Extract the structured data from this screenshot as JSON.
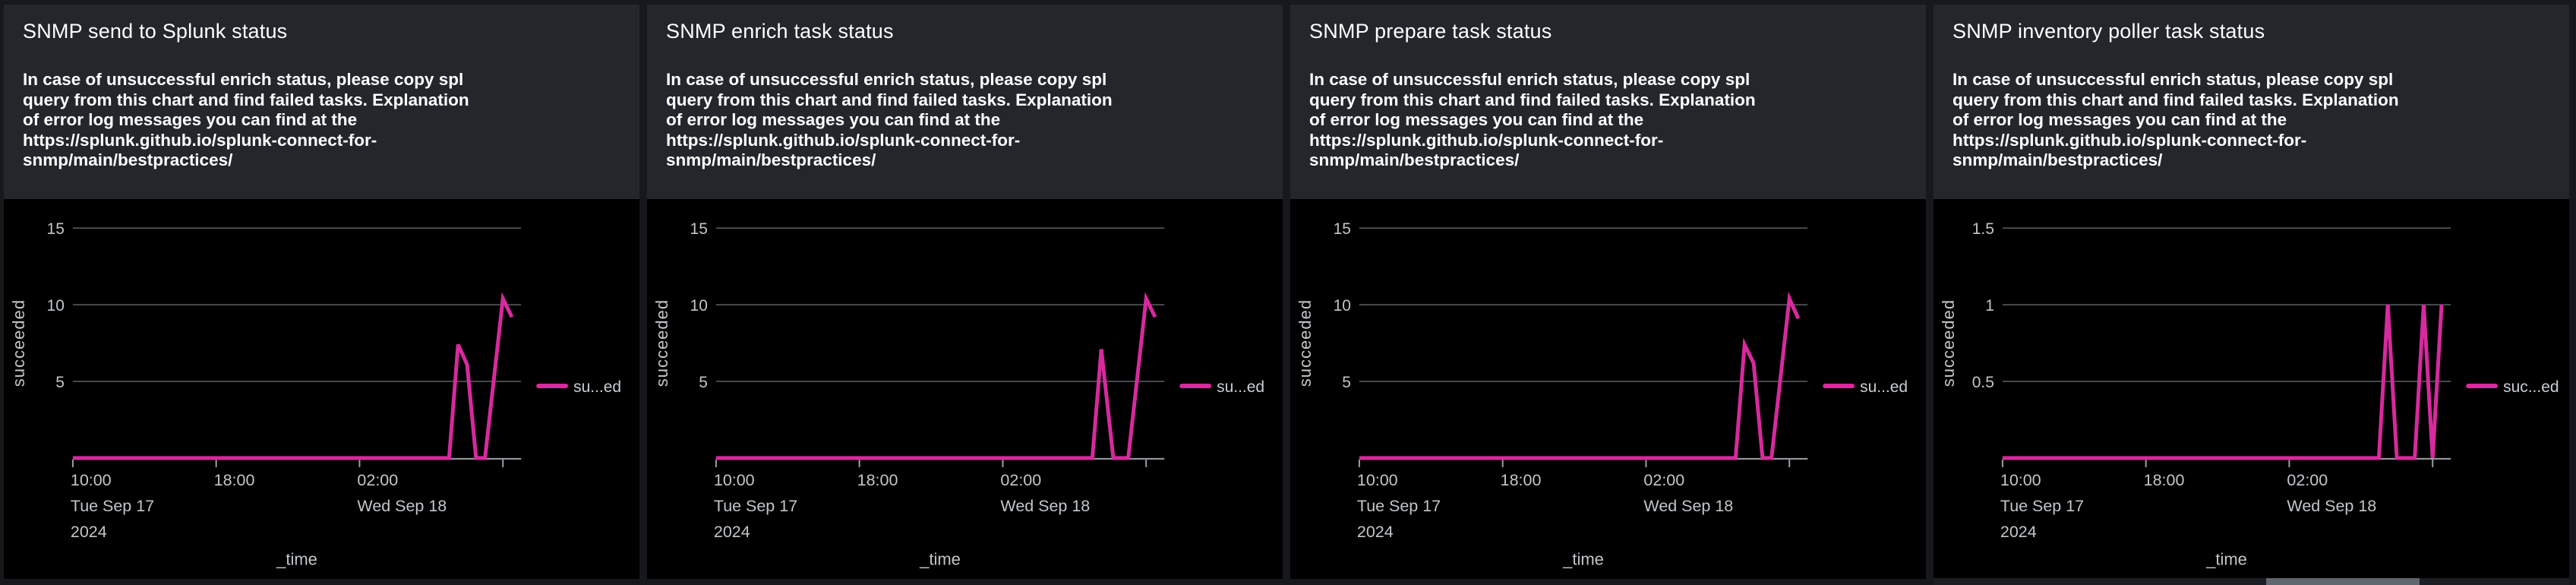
{
  "theme": {
    "page_bg": "#16181c",
    "panel_header_bg": "#23262b",
    "chart_bg": "#000000",
    "line_color": "#d62a9d",
    "grid_color": "#5c6064",
    "axis_color": "#9ba0a5",
    "tick_label_color": "#c2c6ca",
    "title_color": "#ffffff",
    "description_color": "#ffffff",
    "legend_text_color": "#c9cdd1",
    "scrollbar_thumb": "#61676f",
    "scrollbar_track": "#1b1e22"
  },
  "description_lines": [
    "In case of unsuccessful enrich status, please copy spl",
    "query from this chart and find failed tasks. Explanation",
    "of error log messages you can find at the",
    "https://splunk.github.io/splunk-connect-for-",
    "snmp/main/bestpractices/"
  ],
  "chart_data": [
    {
      "type": "line",
      "title": "SNMP send to Splunk status",
      "xlabel": "_time",
      "ylabel": "succeeded",
      "yticks": [
        15,
        10,
        5
      ],
      "ylim": [
        0,
        17
      ],
      "grid": "horizontal",
      "legend_position": "right",
      "x_start": "2024-09-17T10:00",
      "x_ticks": [
        {
          "time": "2024-09-17T10:00",
          "lines": [
            "10:00",
            "Tue Sep 17",
            "2024"
          ]
        },
        {
          "time": "2024-09-17T18:00",
          "lines": [
            "18:00"
          ]
        },
        {
          "time": "2024-09-18T02:00",
          "lines": [
            "02:00",
            "Wed Sep 18"
          ]
        },
        {
          "time": "2024-09-18T10:00",
          "lines": []
        }
      ],
      "series": [
        {
          "name": "succeeded",
          "legend_label": "su...ed",
          "color": "#d62a9d",
          "points": [
            [
              "2024-09-17T10:00",
              0
            ],
            [
              "2024-09-18T07:00",
              0
            ],
            [
              "2024-09-18T07:30",
              7.4
            ],
            [
              "2024-09-18T08:00",
              6.1
            ],
            [
              "2024-09-18T08:30",
              0
            ],
            [
              "2024-09-18T09:00",
              0
            ],
            [
              "2024-09-18T10:00",
              10.4
            ],
            [
              "2024-09-18T10:30",
              9.2
            ]
          ]
        }
      ]
    },
    {
      "type": "line",
      "title": "SNMP enrich task status",
      "xlabel": "_time",
      "ylabel": "succeeded",
      "yticks": [
        15,
        10,
        5
      ],
      "ylim": [
        0,
        17
      ],
      "grid": "horizontal",
      "legend_position": "right",
      "x_start": "2024-09-17T10:00",
      "x_ticks": [
        {
          "time": "2024-09-17T10:00",
          "lines": [
            "10:00",
            "Tue Sep 17",
            "2024"
          ]
        },
        {
          "time": "2024-09-17T18:00",
          "lines": [
            "18:00"
          ]
        },
        {
          "time": "2024-09-18T02:00",
          "lines": [
            "02:00",
            "Wed Sep 18"
          ]
        },
        {
          "time": "2024-09-18T10:00",
          "lines": []
        }
      ],
      "series": [
        {
          "name": "succeeded",
          "legend_label": "su...ed",
          "color": "#d62a9d",
          "points": [
            [
              "2024-09-17T10:00",
              0
            ],
            [
              "2024-09-18T07:00",
              0
            ],
            [
              "2024-09-18T07:30",
              7.1
            ],
            [
              "2024-09-18T08:10",
              0
            ],
            [
              "2024-09-18T09:00",
              0
            ],
            [
              "2024-09-18T10:00",
              10.4
            ],
            [
              "2024-09-18T10:30",
              9.2
            ]
          ]
        }
      ]
    },
    {
      "type": "line",
      "title": "SNMP prepare task status",
      "xlabel": "_time",
      "ylabel": "succeeded",
      "yticks": [
        15,
        10,
        5
      ],
      "ylim": [
        0,
        17
      ],
      "grid": "horizontal",
      "legend_position": "right",
      "x_start": "2024-09-17T10:00",
      "x_ticks": [
        {
          "time": "2024-09-17T10:00",
          "lines": [
            "10:00",
            "Tue Sep 17",
            "2024"
          ]
        },
        {
          "time": "2024-09-17T18:00",
          "lines": [
            "18:00"
          ]
        },
        {
          "time": "2024-09-18T02:00",
          "lines": [
            "02:00",
            "Wed Sep 18"
          ]
        },
        {
          "time": "2024-09-18T10:00",
          "lines": []
        }
      ],
      "series": [
        {
          "name": "succeeded",
          "legend_label": "su...ed",
          "color": "#d62a9d",
          "points": [
            [
              "2024-09-17T10:00",
              0
            ],
            [
              "2024-09-18T07:00",
              0
            ],
            [
              "2024-09-18T07:30",
              7.4
            ],
            [
              "2024-09-18T08:00",
              6.2
            ],
            [
              "2024-09-18T08:30",
              0
            ],
            [
              "2024-09-18T09:00",
              0
            ],
            [
              "2024-09-18T10:00",
              10.4
            ],
            [
              "2024-09-18T10:30",
              9.1
            ]
          ]
        }
      ]
    },
    {
      "type": "line",
      "title": "SNMP inventory poller task status",
      "xlabel": "_time",
      "ylabel": "succeeded",
      "yticks": [
        1.5,
        1,
        0.5
      ],
      "ylim": [
        0,
        1.7
      ],
      "grid": "horizontal",
      "legend_position": "right",
      "x_start": "2024-09-17T10:00",
      "x_ticks": [
        {
          "time": "2024-09-17T10:00",
          "lines": [
            "10:00",
            "Tue Sep 17",
            "2024"
          ]
        },
        {
          "time": "2024-09-17T18:00",
          "lines": [
            "18:00"
          ]
        },
        {
          "time": "2024-09-18T02:00",
          "lines": [
            "02:00",
            "Wed Sep 18"
          ]
        },
        {
          "time": "2024-09-18T10:00",
          "lines": []
        }
      ],
      "series": [
        {
          "name": "succeeded",
          "legend_label": "suc...ed",
          "color": "#d62a9d",
          "points": [
            [
              "2024-09-17T10:00",
              0
            ],
            [
              "2024-09-18T07:00",
              0
            ],
            [
              "2024-09-18T07:30",
              1
            ],
            [
              "2024-09-18T08:00",
              0
            ],
            [
              "2024-09-18T09:00",
              0
            ],
            [
              "2024-09-18T09:30",
              1
            ],
            [
              "2024-09-18T10:00",
              0
            ],
            [
              "2024-09-18T10:30",
              1
            ]
          ]
        }
      ]
    }
  ]
}
